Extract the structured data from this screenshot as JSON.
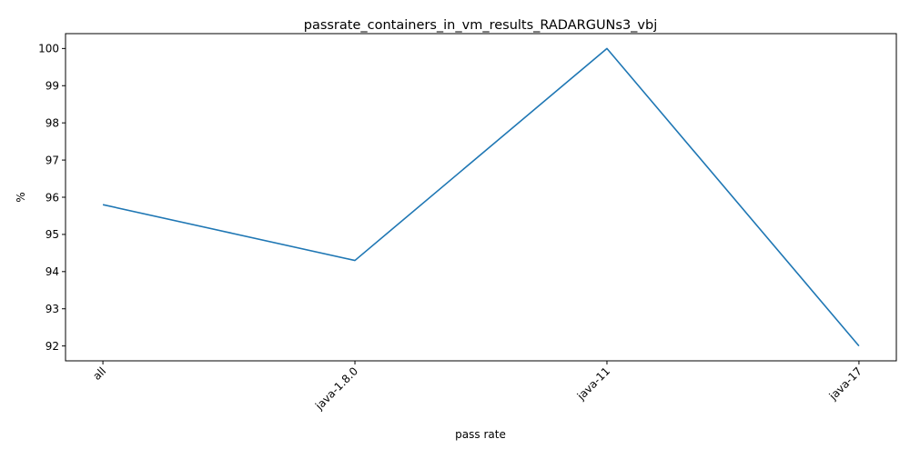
{
  "chart_data": {
    "type": "line",
    "title": "passrate_containers_in_vm_results_RADARGUNs3_vbj",
    "xlabel": "pass rate",
    "ylabel": "%",
    "categories": [
      "all",
      "java-1.8.0",
      "java-11",
      "java-17"
    ],
    "series": [
      {
        "values": [
          95.8,
          94.3,
          100.0,
          92.0
        ],
        "color": "#1f77b4"
      }
    ],
    "yticks": [
      "92",
      "93",
      "94",
      "95",
      "96",
      "97",
      "98",
      "99",
      "100"
    ],
    "ylim": [
      91.6,
      100.4
    ],
    "grid": false,
    "legend": false,
    "xtick_rotation": 45
  }
}
